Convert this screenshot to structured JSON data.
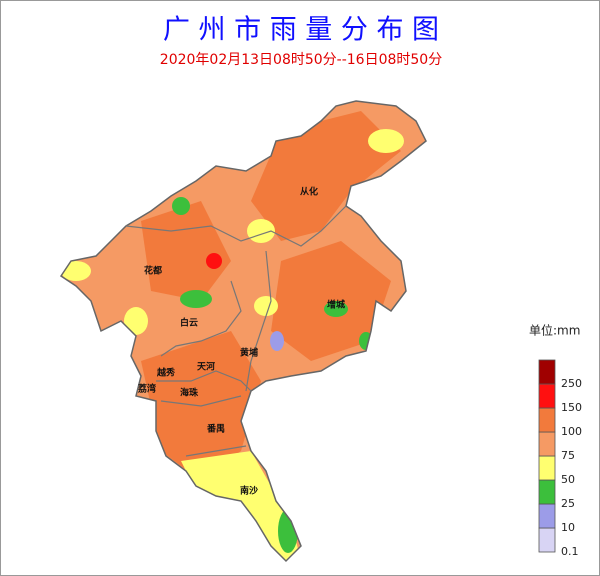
{
  "header": {
    "title": "广 州 市 雨 量 分 布 图",
    "subtitle": "2020年02月13日08时50分--16日08时50分"
  },
  "districts": [
    "从化",
    "花都",
    "增城",
    "白云",
    "黄埔",
    "天河",
    "越秀",
    "荔湾",
    "海珠",
    "番禺",
    "南沙"
  ],
  "legend": {
    "title": "单位:mm",
    "levels": [
      {
        "value": 0.1,
        "color": "#d8d4f4"
      },
      {
        "value": 10,
        "color": "#9c9ce8"
      },
      {
        "value": 25,
        "color": "#3cbf3c"
      },
      {
        "value": 50,
        "color": "#ffff70"
      },
      {
        "value": 75,
        "color": "#f59a64"
      },
      {
        "value": 100,
        "color": "#f27a3c"
      },
      {
        "value": 150,
        "color": "#ff1010"
      },
      {
        "value": 250,
        "color": "#a00000"
      }
    ]
  }
}
